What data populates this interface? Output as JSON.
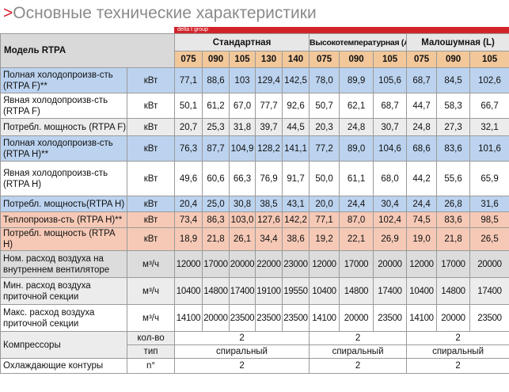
{
  "title": {
    "arrow": ">",
    "text": "Основные технические характеристики"
  },
  "brand": "delta t group",
  "header": {
    "model_label": "Модель RTPA",
    "groups": [
      "Стандартная",
      "Высокотемпературная (A)",
      "Малошумная (L)"
    ],
    "sizes": [
      "075",
      "090",
      "105",
      "130",
      "140",
      "075",
      "090",
      "105",
      "075",
      "090",
      "105"
    ]
  },
  "rows": [
    {
      "label": "Полная холодопроизв-сть (RTPA F)**",
      "unit": "кВт",
      "values": [
        "77,1",
        "88,6",
        "103",
        "129,4",
        "142,5",
        "78,0",
        "89,9",
        "105,6",
        "68,7",
        "84,5",
        "102,6"
      ]
    },
    {
      "label": "Явная холодопроизв-сть (RTPA F)",
      "unit": "кВт",
      "values": [
        "50,1",
        "61,2",
        "67,0",
        "77,7",
        "92,6",
        "50,7",
        "62,1",
        "68,7",
        "44,7",
        "58,3",
        "66,7"
      ]
    },
    {
      "label": "Потребл. мощность (RTPA F)",
      "unit": "кВт",
      "values": [
        "20,7",
        "25,3",
        "31,8",
        "39,7",
        "44,5",
        "20,3",
        "24,8",
        "30,7",
        "24,8",
        "27,3",
        "32,1"
      ]
    },
    {
      "label": "Полная холодопроизв-сть (RTPA H)**",
      "unit": "кВт",
      "values": [
        "76,3",
        "87,7",
        "104,9",
        "128,2",
        "141,1",
        "77,2",
        "89,0",
        "104,6",
        "68,6",
        "83,6",
        "101,6"
      ]
    },
    {
      "label": "Явная холодопроизв-сть (RTPA H)",
      "unit": "кВт",
      "values": [
        "49,6",
        "60,6",
        "66,3",
        "76,9",
        "91,7",
        "50,0",
        "61,1",
        "68,0",
        "44,2",
        "55,6",
        "65,9"
      ]
    },
    {
      "label": "Потребл. мощность(RTPA H)",
      "unit": "кВт",
      "values": [
        "20,4",
        "25,0",
        "30,8",
        "38,5",
        "43,1",
        "20,0",
        "24,4",
        "30,4",
        "24,4",
        "26,8",
        "31,6"
      ]
    },
    {
      "label": "Теплопроизв-сть (RTPA H)**",
      "unit": "кВт",
      "values": [
        "73,4",
        "86,3",
        "103,0",
        "127,6",
        "142,2",
        "77,1",
        "87,0",
        "102,4",
        "74,5",
        "83,6",
        "98,5"
      ]
    },
    {
      "label": "Потребл. мощность (RTPA H)",
      "unit": "кВт",
      "values": [
        "18,9",
        "21,8",
        "26,1",
        "34,4",
        "38,6",
        "19,2",
        "22,1",
        "26,9",
        "19,0",
        "21,8",
        "26,5"
      ]
    },
    {
      "label": "Ном. расход воздуха на внутреннем вентиляторе",
      "unit": "м³/ч",
      "values": [
        "12000",
        "17000",
        "20000",
        "22000",
        "23000",
        "12000",
        "17000",
        "20000",
        "12000",
        "17000",
        "20000"
      ]
    },
    {
      "label": "Мин. расход воздуха приточной секции",
      "unit": "м³/ч",
      "values": [
        "10400",
        "14800",
        "17400",
        "19100",
        "19550",
        "10400",
        "14800",
        "17400",
        "10400",
        "14800",
        "17400"
      ]
    },
    {
      "label": "Макс. расход воздуха приточной секции",
      "unit": "м³/ч",
      "values": [
        "14100",
        "20000",
        "23500",
        "23500",
        "23500",
        "14100",
        "20000",
        "23500",
        "14100",
        "20000",
        "23500"
      ]
    }
  ],
  "compressors": {
    "label": "Компрессоры",
    "count_label": "кол-во",
    "type_label": "тип",
    "counts": [
      "2",
      "2",
      "2"
    ],
    "types": [
      "спиральный",
      "спиральный",
      "спиральный"
    ]
  },
  "circuits": {
    "label": "Охлаждающие контуры",
    "unit": "n°",
    "values": [
      "2",
      "2",
      "2"
    ]
  },
  "colors": {
    "accent": "#d2232a",
    "blue_row": "#bcd3ef",
    "pink_row": "#f6c9b6",
    "header_orange": "#f2c79a"
  }
}
